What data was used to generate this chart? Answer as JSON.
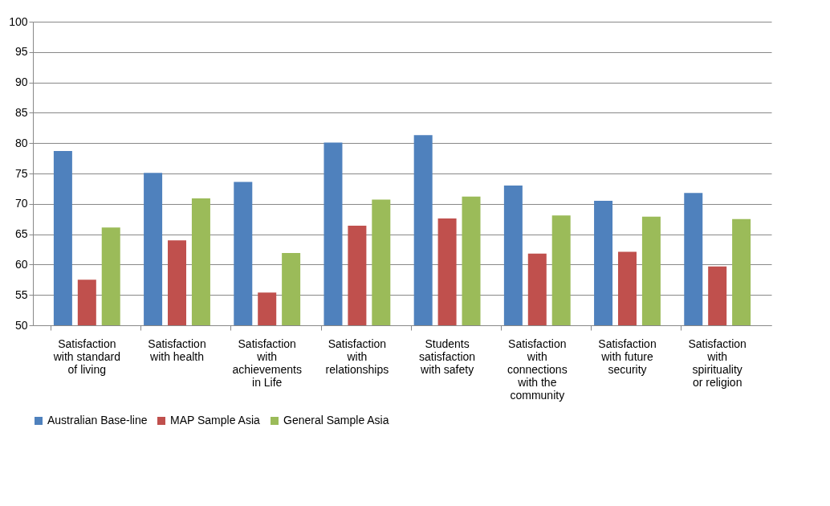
{
  "chart_data": {
    "type": "bar",
    "categories": [
      "Satisfaction with standard of living",
      "Satisfaction with health",
      "Satisfaction with achievements in Life",
      "Satisfaction with relationships",
      "Students satisfaction with safety",
      "Satisfaction with connections with the community",
      "Satisfaction with future security",
      "Satisfaction with spirituality or religion"
    ],
    "series": [
      {
        "name": "Australian Base-line",
        "color": "#4f81bd",
        "values": [
          78.7,
          75.1,
          73.6,
          80.1,
          81.3,
          73.0,
          70.5,
          71.8
        ]
      },
      {
        "name": "MAP Sample Asia",
        "color": "#c0504d",
        "values": [
          57.5,
          64.0,
          55.4,
          66.4,
          67.6,
          61.8,
          62.1,
          59.7
        ]
      },
      {
        "name": "General Sample Asia",
        "color": "#9bbb59",
        "values": [
          66.1,
          70.9,
          61.9,
          70.7,
          71.2,
          68.1,
          67.9,
          67.5
        ]
      }
    ],
    "ylim": [
      50,
      100
    ],
    "yticks": [
      50,
      55,
      60,
      65,
      70,
      75,
      80,
      85,
      90,
      95,
      100
    ],
    "grid": "y",
    "legend": "bottom"
  }
}
